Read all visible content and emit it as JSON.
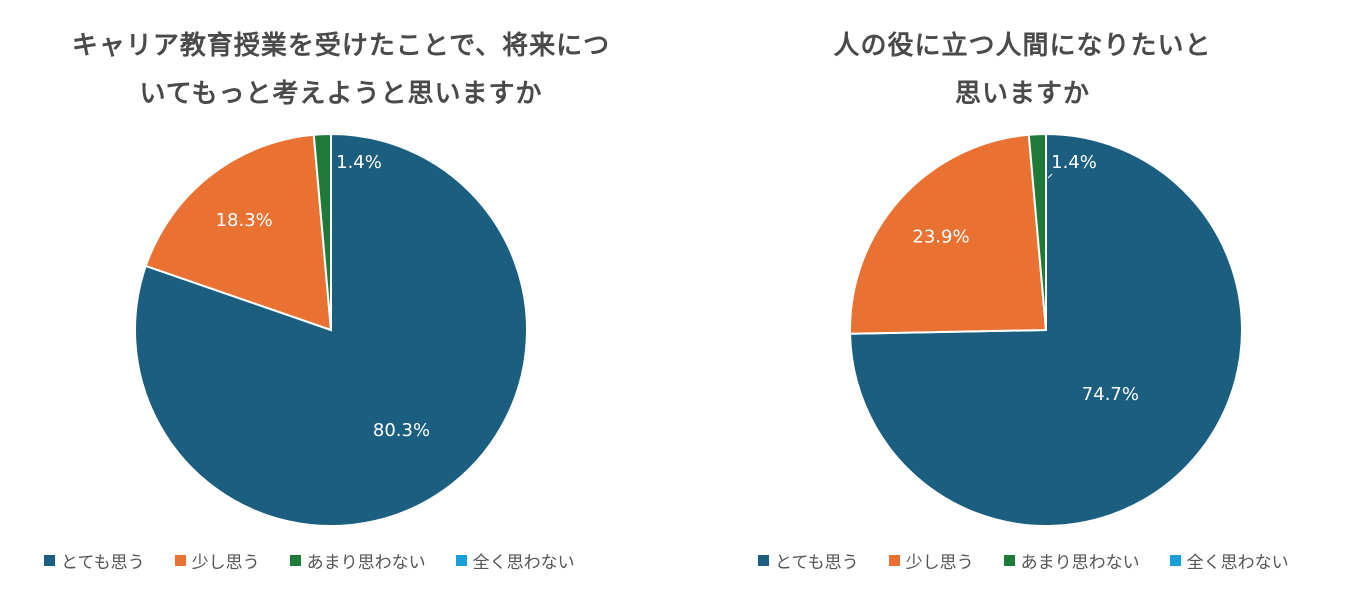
{
  "colors": {
    "very": "#1b5e80",
    "somewhat": "#e97132",
    "notmuch": "#1f7a3a",
    "notatall": "#1aa0d8"
  },
  "legend": [
    "とても思う",
    "少し思う",
    "あまり思わない",
    "全く思わない"
  ],
  "chart_data": [
    {
      "type": "pie",
      "title": [
        "キャリア教育授業を受けたことで、将来につ",
        "いてもっと考えようと思いますか"
      ],
      "categories": [
        "とても思う",
        "少し思う",
        "あまり思わない",
        "全く思わない"
      ],
      "values": [
        80.3,
        18.3,
        1.4,
        0
      ],
      "labels": [
        "80.3%",
        "18.3%",
        "1.4%",
        ""
      ],
      "legend_position": "bottom"
    },
    {
      "type": "pie",
      "title": [
        "人の役に立つ人間になりたいと",
        "思いますか"
      ],
      "categories": [
        "とても思う",
        "少し思う",
        "あまり思わない",
        "全く思わない"
      ],
      "values": [
        74.7,
        23.9,
        1.4,
        0
      ],
      "labels": [
        "74.7%",
        "23.9%",
        "1.4%",
        ""
      ],
      "legend_position": "bottom"
    }
  ]
}
